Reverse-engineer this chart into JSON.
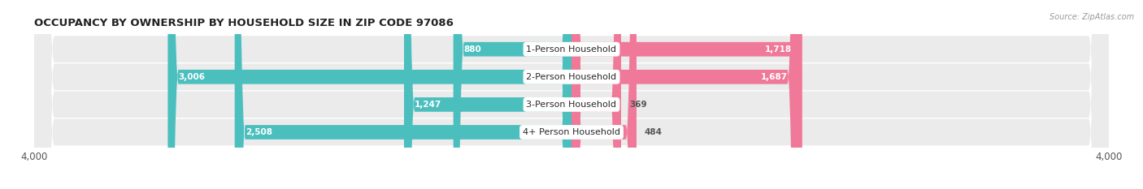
{
  "title": "OCCUPANCY BY OWNERSHIP BY HOUSEHOLD SIZE IN ZIP CODE 97086",
  "source": "Source: ZipAtlas.com",
  "categories": [
    "1-Person Household",
    "2-Person Household",
    "3-Person Household",
    "4+ Person Household"
  ],
  "owner_values": [
    880,
    3006,
    1247,
    2508
  ],
  "renter_values": [
    1718,
    1687,
    369,
    484
  ],
  "max_scale": 4000,
  "owner_color": "#4bbfbe",
  "renter_color": "#f07898",
  "row_bg_color": "#ebebeb",
  "title_fontsize": 9.5,
  "source_fontsize": 7.0,
  "tick_fontsize": 8.5,
  "bar_label_fontsize": 7.5,
  "category_fontsize": 8.0,
  "legend_fontsize": 8.5,
  "axis_label_color": "#555555",
  "text_in_bar_color": "#ffffff",
  "text_outside_bar_color": "#555555",
  "background_color": "#ffffff",
  "inside_threshold_owner": 500,
  "inside_threshold_renter": 700
}
